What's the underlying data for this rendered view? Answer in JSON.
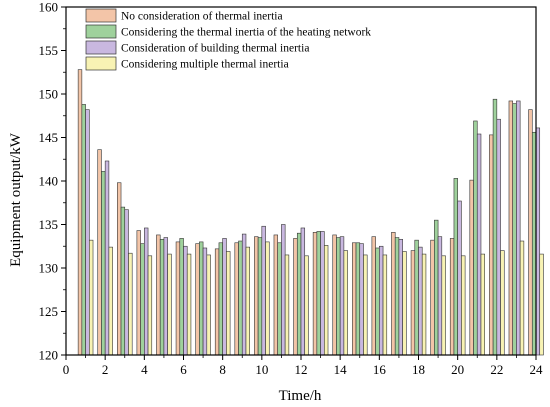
{
  "chart_data": {
    "type": "bar",
    "xlabel": "Time/h",
    "ylabel": "Equipment output/kW",
    "xlim": [
      0,
      24
    ],
    "ylim": [
      120,
      160
    ],
    "x_ticks": [
      0,
      2,
      4,
      6,
      8,
      10,
      12,
      14,
      16,
      18,
      20,
      22,
      24
    ],
    "y_ticks": [
      120,
      125,
      130,
      135,
      140,
      145,
      150,
      155,
      160
    ],
    "grid": false,
    "legend_position": "top",
    "x": [
      1,
      2,
      3,
      4,
      5,
      6,
      7,
      8,
      9,
      10,
      11,
      12,
      13,
      14,
      15,
      16,
      17,
      18,
      19,
      20,
      21,
      22,
      23,
      24
    ],
    "series": [
      {
        "name": "No consideration of thermal inertia",
        "color": "#f3c5a8",
        "values": [
          152.8,
          143.6,
          139.8,
          134.3,
          133.8,
          133.0,
          132.8,
          132.2,
          132.9,
          133.6,
          133.8,
          133.4,
          134.1,
          133.8,
          132.9,
          133.6,
          134.1,
          132.0,
          133.2,
          133.4,
          140.1,
          145.3,
          149.2,
          148.2
        ]
      },
      {
        "name": "Considering the thermal inertia of the heating network",
        "color": "#9fd19c",
        "values": [
          148.8,
          141.1,
          137.0,
          132.8,
          133.3,
          133.4,
          133.0,
          132.9,
          133.1,
          133.5,
          132.9,
          134.0,
          134.2,
          133.5,
          132.9,
          132.3,
          133.5,
          133.2,
          135.5,
          140.3,
          146.9,
          149.4,
          148.9,
          145.6
        ]
      },
      {
        "name": "Consideration of building thermal inertia",
        "color": "#c9b8e0",
        "values": [
          148.2,
          142.3,
          136.7,
          134.6,
          133.5,
          132.5,
          132.3,
          133.4,
          133.9,
          134.8,
          135.0,
          134.6,
          134.2,
          133.6,
          132.8,
          132.5,
          133.3,
          132.4,
          133.6,
          137.7,
          145.4,
          147.1,
          149.2,
          146.1
        ]
      },
      {
        "name": "Considering multiple thermal inertia",
        "color": "#f8f3b4",
        "values": [
          133.2,
          132.4,
          131.7,
          131.4,
          131.6,
          131.6,
          131.5,
          131.9,
          132.4,
          133.0,
          131.5,
          131.4,
          132.6,
          132.0,
          131.5,
          131.5,
          131.9,
          131.6,
          131.4,
          131.4,
          131.6,
          132.0,
          133.1,
          131.6
        ]
      }
    ]
  }
}
